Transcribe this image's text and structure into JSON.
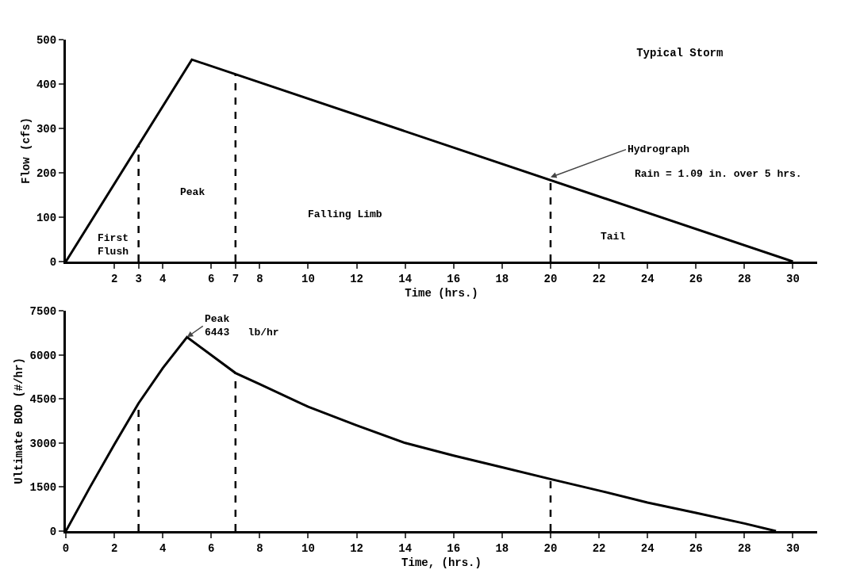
{
  "chart_data": [
    {
      "type": "line",
      "title": "Typical Storm",
      "xlabel": "Time (hrs.)",
      "ylabel": "Flow (cfs)",
      "series": [
        {
          "color": "#000000",
          "x": [
            0,
            5.2,
            30
          ],
          "values": [
            0,
            455,
            0
          ]
        }
      ],
      "ref_lines": [
        {
          "axis": "x",
          "value": 3,
          "color": "#000000",
          "line_style": "dashed"
        },
        {
          "axis": "x",
          "value": 7,
          "color": "#000000",
          "line_style": "dashed"
        },
        {
          "axis": "x",
          "value": 20,
          "color": "#000000",
          "line_style": "dashed"
        }
      ],
      "xlim": [
        0,
        31
      ],
      "xticks": [
        2,
        3,
        4,
        6,
        7,
        8,
        10,
        12,
        14,
        16,
        18,
        20,
        22,
        24,
        26,
        28,
        30
      ],
      "ylim": [
        0,
        500
      ],
      "yticks": [
        0,
        100,
        200,
        300,
        400,
        500
      ],
      "annotations": [
        "First\nFlush",
        "Peak",
        "Falling Limb",
        "Tail",
        {
          "text": "Hydrograph",
          "x": 20,
          "y": 190
        },
        "Rain = 1.09 in. over 5 hrs."
      ],
      "marker": "none",
      "line_style": "solid"
    },
    {
      "type": "line",
      "xlabel": "Time, (hrs.)",
      "ylabel": "Ultimate BOD (#/hr)",
      "series": [
        {
          "color": "#000000",
          "x": [
            0,
            1,
            2,
            3,
            4,
            5,
            7,
            8,
            10,
            12,
            14,
            16,
            18,
            20,
            22,
            24,
            26,
            28,
            29.3
          ],
          "values": [
            0,
            1500,
            2950,
            4350,
            5550,
            6600,
            5380,
            5000,
            4230,
            3600,
            3000,
            2570,
            2170,
            1770,
            1380,
            970,
            620,
            260,
            0
          ]
        }
      ],
      "ref_lines": [
        {
          "axis": "x",
          "value": 3,
          "color": "#000000",
          "line_style": "dashed"
        },
        {
          "axis": "x",
          "value": 7,
          "color": "#000000",
          "line_style": "dashed"
        },
        {
          "axis": "x",
          "value": 20,
          "color": "#000000",
          "line_style": "dashed"
        }
      ],
      "xlim": [
        0,
        31
      ],
      "xticks": [
        0,
        2,
        4,
        6,
        8,
        10,
        12,
        14,
        16,
        18,
        20,
        22,
        24,
        26,
        28,
        30
      ],
      "ylim": [
        0,
        7500
      ],
      "yticks": [
        0,
        1500,
        3000,
        4500,
        6000,
        7500
      ],
      "annotations": [
        {
          "text": "Peak\n6443   lb/hr",
          "x": 5,
          "y": 6600
        }
      ],
      "marker": "none",
      "line_style": "solid"
    }
  ]
}
